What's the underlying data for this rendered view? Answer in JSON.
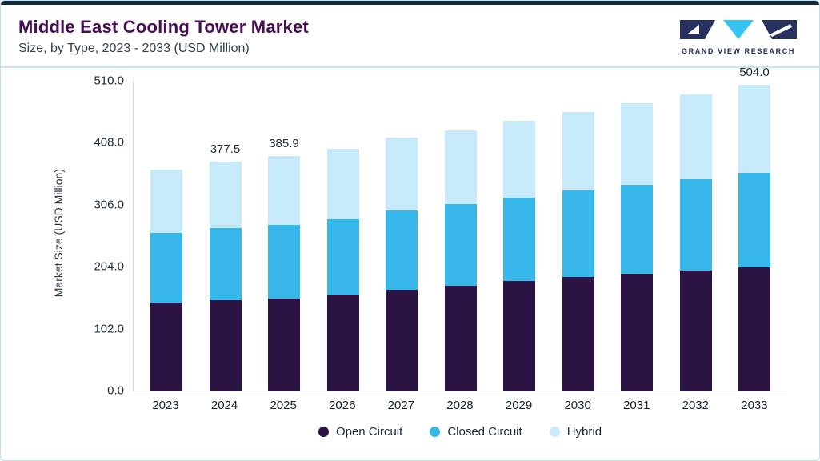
{
  "header": {
    "title": "Middle East Cooling Tower Market",
    "subtitle": "Size, by Type, 2023 - 2033 (USD Million)"
  },
  "logo": {
    "text": "GRAND VIEW RESEARCH",
    "navy": "#27305f",
    "cyan": "#35c4f1"
  },
  "chart_data": {
    "type": "bar",
    "stacked": true,
    "title": "Middle East Cooling Tower Market Size, by Type, 2023 - 2033 (USD Million)",
    "categories": [
      "2023",
      "2024",
      "2025",
      "2026",
      "2027",
      "2028",
      "2029",
      "2030",
      "2031",
      "2032",
      "2033"
    ],
    "series": [
      {
        "name": "Open Circuit",
        "color": "#2b1344",
        "values": [
          145.0,
          149.0,
          152.0,
          158.0,
          166.0,
          173.0,
          180.0,
          187.0,
          193.0,
          198.0,
          203.0
        ]
      },
      {
        "name": "Closed Circuit",
        "color": "#36b6e9",
        "values": [
          114.0,
          118.0,
          121.0,
          124.0,
          131.0,
          134.0,
          138.0,
          142.0,
          146.0,
          150.0,
          155.0
        ]
      },
      {
        "name": "Hybrid",
        "color": "#c7eafb",
        "values": [
          104.5,
          110.5,
          112.9,
          116.0,
          119.0,
          122.0,
          126.0,
          130.0,
          134.0,
          139.0,
          146.0
        ]
      }
    ],
    "totals": [
      363.5,
      377.5,
      385.9,
      398.0,
      416.0,
      429.0,
      444.0,
      459.0,
      473.0,
      487.0,
      504.0
    ],
    "data_labels": [
      "",
      "377.5",
      "385.9",
      "",
      "",
      "",
      "",
      "",
      "",
      "",
      "504.0"
    ],
    "ylabel": "Market Size (USD Million)",
    "xlabel": "",
    "ylim": [
      0,
      510
    ],
    "yticks": [
      "0.0",
      "102.0",
      "204.0",
      "306.0",
      "408.0",
      "510.0"
    ],
    "grid": false,
    "legend_position": "bottom"
  }
}
